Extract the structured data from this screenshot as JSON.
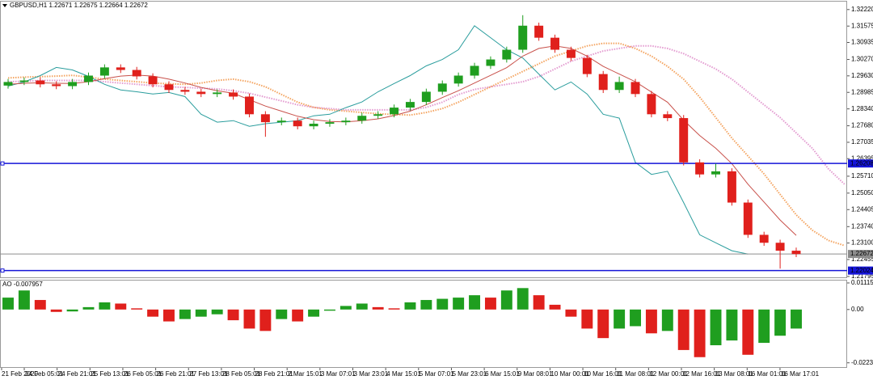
{
  "chart_data": [
    {
      "type": "candlestick",
      "title": "GBPUSD,H1 1.22671 1.22675 1.22664 1.22672",
      "up_color": "#1f9e1f",
      "down_color": "#e0201c",
      "open": [
        1.2925,
        1.2939,
        1.2945,
        1.293,
        1.2923,
        1.2939,
        1.2964,
        1.2996,
        1.2986,
        1.2961,
        1.293,
        1.2908,
        1.2901,
        1.2892,
        1.2898,
        1.2882,
        1.2813,
        1.2782,
        1.2788,
        1.2766,
        1.2776,
        1.2782,
        1.2788,
        1.2807,
        1.2813,
        1.2839,
        1.2861,
        1.2901,
        1.2933,
        1.2964,
        1.3002,
        1.3027,
        1.3065,
        1.3159,
        1.3112,
        1.3065,
        1.3033,
        1.297,
        1.2908,
        1.2939,
        1.2892,
        1.2813,
        1.2798,
        1.2625,
        1.2578,
        1.259,
        1.2468,
        1.2342,
        1.2311,
        1.228
      ],
      "high": [
        1.2951,
        1.2957,
        1.2957,
        1.2942,
        1.2951,
        1.2976,
        1.3008,
        1.3008,
        1.2998,
        1.2973,
        1.2942,
        1.292,
        1.2913,
        1.291,
        1.291,
        1.2894,
        1.2825,
        1.28,
        1.28,
        1.2788,
        1.2794,
        1.28,
        1.2819,
        1.2825,
        1.2851,
        1.2873,
        1.2913,
        1.2945,
        1.2976,
        1.3014,
        1.3039,
        1.3077,
        1.32,
        1.3171,
        1.3124,
        1.3077,
        1.3045,
        1.2982,
        1.296,
        1.2951,
        1.2904,
        1.2825,
        1.281,
        1.2637,
        1.262,
        1.2602,
        1.248,
        1.2354,
        1.2323,
        1.2292
      ],
      "low": [
        1.2913,
        1.2927,
        1.2918,
        1.2911,
        1.2911,
        1.2927,
        1.2952,
        1.2974,
        1.2949,
        1.2918,
        1.2896,
        1.2889,
        1.288,
        1.288,
        1.287,
        1.2801,
        1.2725,
        1.277,
        1.2754,
        1.2754,
        1.2764,
        1.277,
        1.2776,
        1.2795,
        1.2801,
        1.2827,
        1.2849,
        1.2889,
        1.2921,
        1.2952,
        1.299,
        1.3015,
        1.3053,
        1.31,
        1.3053,
        1.3021,
        1.2958,
        1.2896,
        1.2896,
        1.288,
        1.2801,
        1.2786,
        1.2613,
        1.2566,
        1.2566,
        1.2456,
        1.233,
        1.2299,
        1.221,
        1.2255
      ],
      "close": [
        1.2939,
        1.2945,
        1.293,
        1.2923,
        1.2939,
        1.2964,
        1.2996,
        1.2986,
        1.2961,
        1.293,
        1.2908,
        1.2901,
        1.2892,
        1.2898,
        1.2882,
        1.2813,
        1.2782,
        1.2788,
        1.2766,
        1.2776,
        1.2782,
        1.2788,
        1.2807,
        1.2813,
        1.2839,
        1.2861,
        1.2901,
        1.2933,
        1.2964,
        1.3002,
        1.3027,
        1.3065,
        1.3159,
        1.3112,
        1.3065,
        1.3033,
        1.297,
        1.2908,
        1.2939,
        1.2892,
        1.2813,
        1.2798,
        1.2625,
        1.2578,
        1.259,
        1.2468,
        1.2342,
        1.2311,
        1.228,
        1.2267
      ],
      "ma": {
        "color": "#c8504a",
        "values": [
          1.293,
          1.2934,
          1.2936,
          1.2934,
          1.2933,
          1.294,
          1.2952,
          1.2962,
          1.2966,
          1.2962,
          1.295,
          1.2935,
          1.2918,
          1.2905,
          1.2895,
          1.287,
          1.2845,
          1.2825,
          1.2805,
          1.2792,
          1.2785,
          1.2783,
          1.2788,
          1.2795,
          1.2808,
          1.2825,
          1.285,
          1.2878,
          1.2905,
          1.2935,
          1.2965,
          1.2995,
          1.304,
          1.307,
          1.308,
          1.307,
          1.304,
          1.3,
          1.297,
          1.294,
          1.29,
          1.286,
          1.279,
          1.273,
          1.268,
          1.262,
          1.254,
          1.247,
          1.24,
          1.234
        ]
      },
      "chikou": {
        "color": "#2a9d9d",
        "values": [
          1.2923,
          1.2939,
          1.2964,
          1.2996,
          1.2986,
          1.2961,
          1.293,
          1.2908,
          1.2901,
          1.2892,
          1.2898,
          1.2882,
          1.2813,
          1.2782,
          1.2788,
          1.2766,
          1.2776,
          1.2782,
          1.2788,
          1.2807,
          1.2813,
          1.2839,
          1.2861,
          1.2901,
          1.2933,
          1.2964,
          1.3002,
          1.3027,
          1.3065,
          1.3159,
          1.3112,
          1.3065,
          1.3033,
          1.297,
          1.2908,
          1.2939,
          1.2892,
          1.2813,
          1.2798,
          1.2625,
          1.2578,
          1.259,
          1.2468,
          1.2342,
          1.2311,
          1.228,
          1.2267,
          null,
          null,
          null
        ]
      },
      "span_a": {
        "color": "#f4a460",
        "values": [
          1.2955,
          1.2958,
          1.296,
          1.2962,
          1.2965,
          1.2958,
          1.295,
          1.2945,
          1.294,
          1.2935,
          1.2932,
          1.293,
          1.2935,
          1.2945,
          1.295,
          1.294,
          1.292,
          1.289,
          1.286,
          1.284,
          1.283,
          1.2825,
          1.282,
          1.2815,
          1.2812,
          1.281,
          1.282,
          1.2835,
          1.286,
          1.289,
          1.292,
          1.295,
          1.298,
          1.301,
          1.304,
          1.306,
          1.308,
          1.309,
          1.309,
          1.307,
          1.304,
          1.3,
          1.295,
          1.288,
          1.28,
          1.272,
          1.265,
          1.258,
          1.25,
          1.242,
          1.236,
          1.232,
          1.23
        ]
      },
      "span_b": {
        "color": "#e39ad0",
        "values": [
          1.294,
          1.2942,
          1.2945,
          1.2945,
          1.2945,
          1.2945,
          1.294,
          1.2935,
          1.293,
          1.2925,
          1.292,
          1.2918,
          1.2915,
          1.2912,
          1.2905,
          1.2895,
          1.288,
          1.2865,
          1.285,
          1.284,
          1.2835,
          1.283,
          1.283,
          1.283,
          1.283,
          1.283,
          1.284,
          1.286,
          1.289,
          1.291,
          1.292,
          1.293,
          1.294,
          1.296,
          1.299,
          1.302,
          1.304,
          1.306,
          1.307,
          1.308,
          1.308,
          1.307,
          1.305,
          1.302,
          1.299,
          1.295,
          1.29,
          1.285,
          1.28,
          1.274,
          1.268,
          1.26,
          1.254
        ]
      },
      "hlines": [
        {
          "value": 1.26208,
          "color": "#1515d8"
        },
        {
          "value": 1.22024,
          "color": "#1515d8"
        },
        {
          "value": 1.22672,
          "color": "#8c8c8c"
        }
      ],
      "ylim": [
        1.2176,
        1.3253
      ],
      "yticks": [
        {
          "value": 1.3222,
          "label": "1.32220"
        },
        1.31575,
        1.30935,
        {
          "value": 1.3027,
          "label": "1.30270"
        },
        {
          "value": 1.2963,
          "label": "1.29630"
        },
        1.28985,
        {
          "value": 1.2834,
          "label": "1.28340"
        },
        {
          "value": 1.2768,
          "label": "1.27680"
        },
        1.27035,
        1.26395,
        {
          "value": 1.2571,
          "label": "1.25710"
        },
        {
          "value": 1.2505,
          "label": "1.25050"
        },
        1.24405,
        {
          "value": 1.2374,
          "label": "1.23740"
        },
        {
          "value": 1.231,
          "label": "1.23100"
        },
        1.22455,
        1.21795
      ]
    },
    {
      "type": "bar",
      "title": "AO -0.007957",
      "up_color": "#1f9e1f",
      "down_color": "#e0201c",
      "values": [
        0.005,
        0.008,
        0.004,
        -0.001,
        -0.0008,
        0.001,
        0.003,
        0.0025,
        0.0005,
        -0.003,
        -0.005,
        -0.004,
        -0.003,
        -0.002,
        -0.0045,
        -0.008,
        -0.009,
        -0.004,
        -0.005,
        -0.003,
        -0.0005,
        0.0015,
        0.0025,
        0.001,
        0.0005,
        0.003,
        0.004,
        0.0045,
        0.005,
        0.006,
        0.005,
        0.008,
        0.009,
        0.006,
        0.002,
        -0.003,
        -0.008,
        -0.012,
        -0.008,
        -0.007,
        -0.01,
        -0.009,
        -0.017,
        -0.02,
        -0.015,
        -0.013,
        -0.019,
        -0.014,
        -0.011,
        -0.008
      ],
      "ylim": [
        -0.0245,
        0.0125
      ],
      "yticks": [
        0.011156,
        {
          "value": 0,
          "label": "0.00"
        },
        -0.022377
      ],
      "time_labels": [
        "21 Feb 2020",
        "24 Feb 05:01",
        "24 Feb 21:01",
        "25 Feb 13:01",
        "26 Feb 05:01",
        "26 Feb 21:01",
        "27 Feb 13:01",
        "28 Feb 05:01",
        "28 Feb 21:01",
        "2 Mar 15:01",
        "3 Mar 07:01",
        "3 Mar 23:01",
        "4 Mar 15:01",
        "5 Mar 07:01",
        "5 Mar 23:01",
        "6 Mar 15:01",
        "9 Mar 08:01",
        "10 Mar 00:01",
        "10 Mar 16:01",
        "11 Mar 08:01",
        "12 Mar 00:01",
        "12 Mar 16:01",
        "13 Mar 08:01",
        "16 Mar 01:01",
        "16 Mar 17:01"
      ]
    }
  ]
}
